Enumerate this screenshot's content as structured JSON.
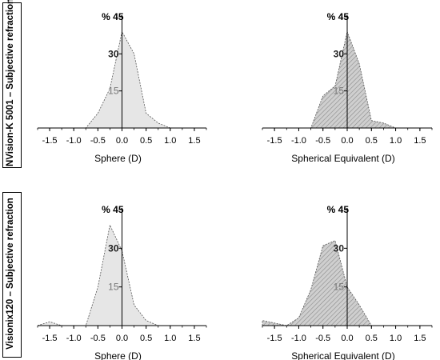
{
  "row_labels": [
    "NVision-K 5001 – Subjective refraction",
    "Visionix120 – Subjective refraction"
  ],
  "chart_data": [
    {
      "type": "area",
      "hatched": false,
      "fill": "#e6e6e6",
      "ylabel": "%",
      "ylim": [
        0,
        45
      ],
      "yticks": [
        "15",
        "30",
        "45"
      ],
      "xlabel": "Sphere (D)",
      "xlim": [
        -1.75,
        1.75
      ],
      "xticks": [
        "-1.5",
        "-1.0",
        "-0.5",
        "0.0",
        "0.5",
        "1.0",
        "1.5"
      ],
      "x": [
        -1.75,
        -0.75,
        -0.5,
        -0.25,
        0.0,
        0.25,
        0.5,
        0.75,
        1.0,
        1.75
      ],
      "y": [
        0,
        0,
        6,
        16,
        39,
        30,
        6,
        2,
        0,
        0
      ]
    },
    {
      "type": "area",
      "hatched": true,
      "fill": "#c8c8c8",
      "ylabel": "%",
      "ylim": [
        0,
        45
      ],
      "yticks": [
        "15",
        "30",
        "45"
      ],
      "xlabel": "Spherical Equivalent (D)",
      "xlim": [
        -1.75,
        1.75
      ],
      "xticks": [
        "-1.5",
        "-1.0",
        "-0.5",
        "0.0",
        "0.5",
        "1.0",
        "1.5"
      ],
      "x": [
        -1.75,
        -0.75,
        -0.5,
        -0.25,
        0.0,
        0.25,
        0.5,
        0.75,
        1.0,
        1.75
      ],
      "y": [
        0,
        0,
        13,
        17,
        39,
        26,
        3,
        2,
        0,
        0
      ]
    },
    {
      "type": "area",
      "hatched": false,
      "fill": "#e6e6e6",
      "ylabel": "%",
      "ylim": [
        0,
        45
      ],
      "yticks": [
        "15",
        "30",
        "45"
      ],
      "xlabel": "Sphere (D)",
      "xlim": [
        -1.75,
        1.75
      ],
      "xticks": [
        "-1.5",
        "-1.0",
        "-0.5",
        "0.0",
        "0.5",
        "1.0",
        "1.5"
      ],
      "x": [
        -1.75,
        -1.5,
        -1.25,
        -0.75,
        -0.5,
        -0.25,
        0.0,
        0.25,
        0.5,
        0.75,
        1.75
      ],
      "y": [
        0,
        1.5,
        0,
        0,
        15,
        39,
        29,
        8,
        2,
        0,
        0
      ]
    },
    {
      "type": "area",
      "hatched": true,
      "fill": "#c8c8c8",
      "ylabel": "%",
      "ylim": [
        0,
        45
      ],
      "yticks": [
        "15",
        "30",
        "45"
      ],
      "xlabel": "Spherical Equivalent (D)",
      "xlim": [
        -1.75,
        1.75
      ],
      "xticks": [
        "-1.5",
        "-1.0",
        "-0.5",
        "0.0",
        "0.5",
        "1.0",
        "1.5"
      ],
      "x": [
        -1.75,
        -1.25,
        -1.0,
        -0.75,
        -0.5,
        -0.25,
        0.0,
        0.25,
        0.5,
        1.75
      ],
      "y": [
        2,
        0,
        3,
        14,
        31,
        33,
        15,
        8,
        0,
        0
      ]
    }
  ]
}
